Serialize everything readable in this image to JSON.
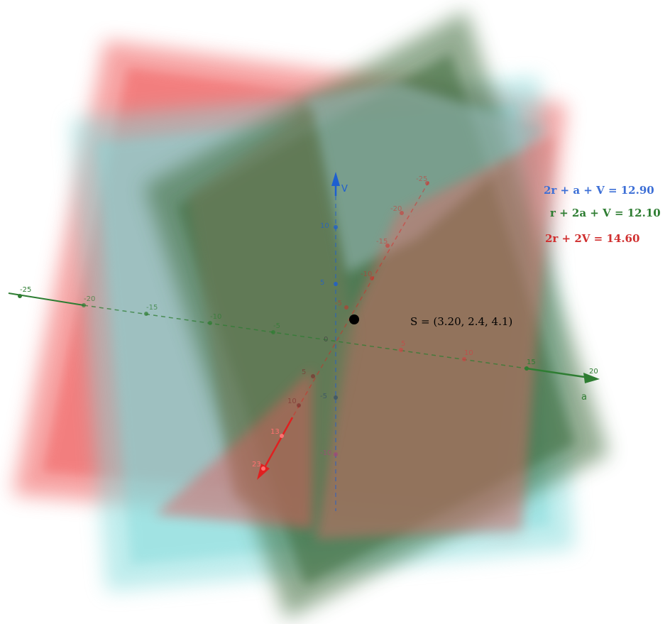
{
  "equations": [
    {
      "text": "2r + a + V = 12.90",
      "color": "#3d6fd6"
    },
    {
      "text": "r + 2a + V = 12.10",
      "color": "#2e7d32"
    },
    {
      "text": "2r + 2V = 14.60",
      "color": "#d03030"
    }
  ],
  "point": {
    "name": "S",
    "label": "S = (3.20, 2.4, 4.1)",
    "coords": [
      3.2,
      2.4,
      4.1
    ],
    "color": "#000000"
  },
  "axes": {
    "a": {
      "name": "a",
      "color": "#2e7d32",
      "ticks": [
        "-25",
        "-20",
        "-15",
        "-10",
        "-5",
        "5",
        "10",
        "15",
        "20"
      ]
    },
    "V": {
      "name": "V",
      "color": "#1e5fd0",
      "ticks": [
        "10",
        "5",
        "-5",
        "-10"
      ]
    },
    "r": {
      "color": "#e02020",
      "ticks": [
        "-25",
        "-20",
        "-15",
        "-10",
        "-5",
        "5",
        "10",
        "13",
        "23"
      ]
    },
    "origin_label": "0"
  },
  "plane_colors": {
    "red_plane": "#f05a5a",
    "cyan_plane": "#7fdada",
    "green_plane": "#3d6b3a"
  }
}
